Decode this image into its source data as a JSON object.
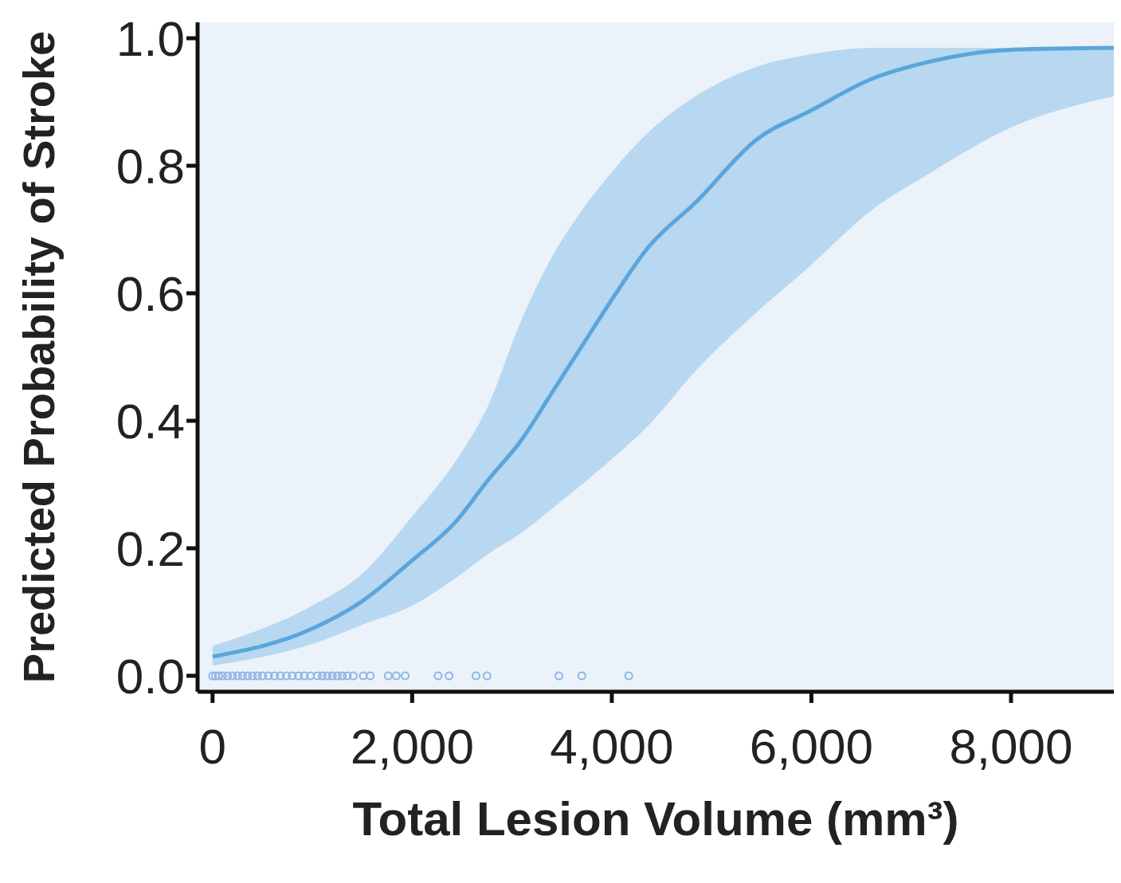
{
  "chart_data": {
    "type": "line",
    "xlabel": "Total Lesion Volume (mm³)",
    "ylabel": "Predicted Probability of Stroke",
    "xlim": [
      -150,
      9030
    ],
    "ylim": [
      -0.025,
      1.025
    ],
    "xticks": [
      0,
      {
        "value": 2000,
        "label": "2,000"
      },
      {
        "value": 4000,
        "label": "4,000"
      },
      {
        "value": 6000,
        "label": "6,000"
      },
      {
        "value": 8000,
        "label": "8,000"
      }
    ],
    "yticks": [
      {
        "value": 0,
        "label": "0.0"
      },
      {
        "value": 0.2,
        "label": "0.2"
      },
      {
        "value": 0.4,
        "label": "0.4"
      },
      {
        "value": 0.6,
        "label": "0.6"
      },
      {
        "value": 0.8,
        "label": "0.8"
      },
      {
        "value": 1,
        "label": "1.0"
      }
    ],
    "grid": false,
    "legend": false,
    "series": [
      {
        "color": "#5aa5dc",
        "marker": "none",
        "line_style": "solid",
        "x": [
          0,
          1000,
          1500,
          2000,
          2450,
          2750,
          3100,
          3400,
          3700,
          4000,
          4350,
          4850,
          5450,
          6000,
          6600,
          7150,
          8000,
          9030
        ],
        "values": [
          0.03,
          0.074,
          0.117,
          0.181,
          0.244,
          0.305,
          0.371,
          0.444,
          0.517,
          0.59,
          0.669,
          0.744,
          0.841,
          0.887,
          0.936,
          0.962,
          0.982,
          0.985
        ],
        "lower": [
          0.016,
          0.05,
          0.08,
          0.11,
          0.155,
          0.19,
          0.225,
          0.262,
          0.3,
          0.34,
          0.39,
          0.48,
          0.57,
          0.645,
          0.73,
          0.785,
          0.86,
          0.909
        ],
        "upper": [
          0.047,
          0.11,
          0.16,
          0.25,
          0.34,
          0.42,
          0.56,
          0.657,
          0.73,
          0.79,
          0.85,
          0.91,
          0.955,
          0.975,
          0.985,
          0.985,
          0.985,
          0.985
        ]
      },
      {
        "type": "scatter",
        "color": "#8fb6e3",
        "marker": "circle",
        "x": [
          0,
          30,
          60,
          100,
          150,
          200,
          250,
          300,
          350,
          400,
          450,
          500,
          560,
          620,
          680,
          740,
          800,
          860,
          920,
          980,
          1050,
          1100,
          1150,
          1200,
          1250,
          1300,
          1350,
          1410,
          1510,
          1580,
          1760,
          1840,
          1930,
          2260,
          2370,
          2640,
          2750,
          3470,
          3700,
          4170
        ],
        "values": [
          0,
          0,
          0,
          0,
          0,
          0,
          0,
          0,
          0,
          0,
          0,
          0,
          0,
          0,
          0,
          0,
          0,
          0,
          0,
          0,
          0,
          0,
          0,
          0,
          0,
          0,
          0,
          0,
          0,
          0,
          0,
          0,
          0,
          0,
          0,
          0,
          0,
          0,
          0,
          0
        ]
      }
    ]
  }
}
